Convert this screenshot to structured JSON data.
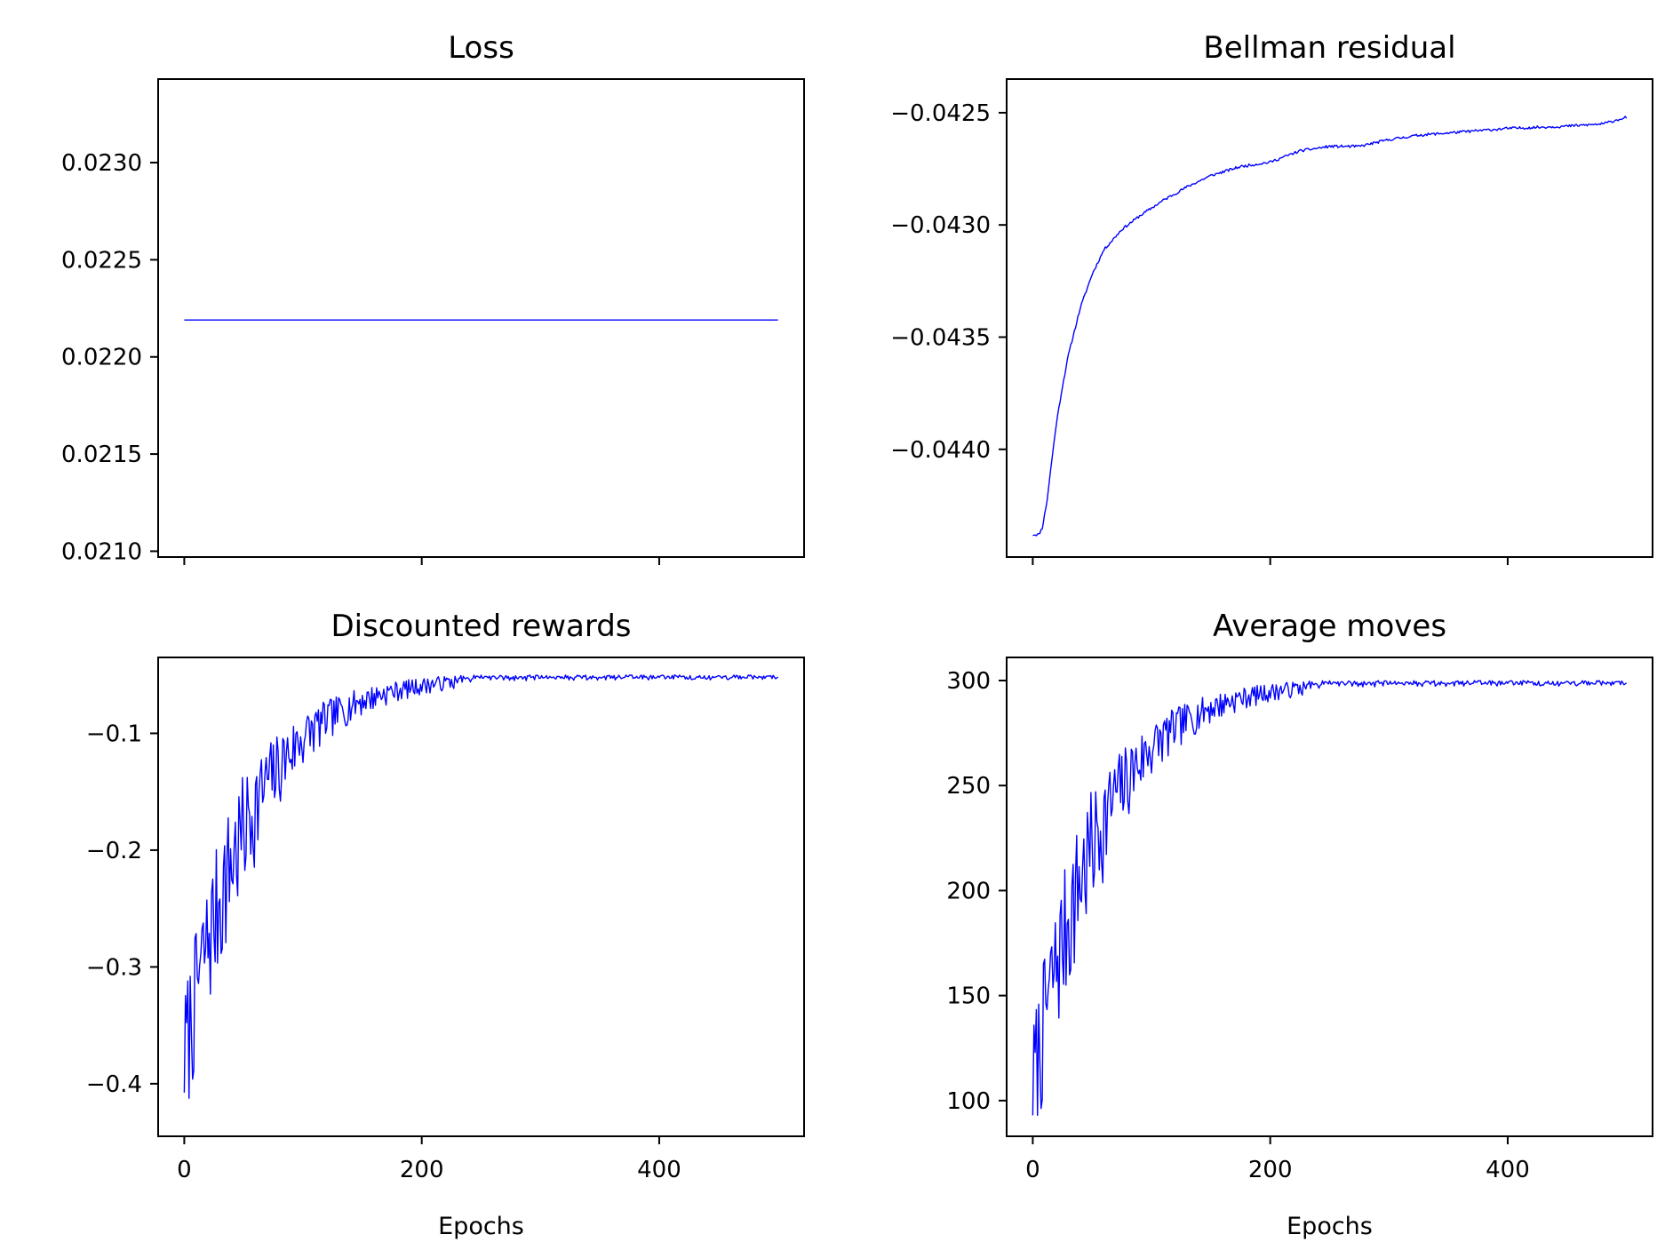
{
  "figure": {
    "background": "#ffffff",
    "line_color": "#0000ff"
  },
  "chart_data": [
    {
      "id": "loss",
      "type": "line",
      "title": "Loss",
      "xlabel": "",
      "ylabel": "",
      "xlim": [
        -22,
        522
      ],
      "ylim": [
        0.02097,
        0.02343
      ],
      "xticks": [
        0,
        200,
        400
      ],
      "xtick_labels": [
        "",
        "",
        ""
      ],
      "yticks": [
        0.021,
        0.0215,
        0.022,
        0.0225,
        0.023
      ],
      "ytick_labels": [
        "0.0210",
        "0.0215",
        "0.0220",
        "0.0225",
        "0.0230"
      ],
      "grid": false,
      "series": [
        {
          "color": "#0000ff",
          "generator": "constant",
          "value": 0.02219,
          "x": [
            0,
            500
          ]
        }
      ]
    },
    {
      "id": "bellman",
      "type": "line",
      "title": "Bellman residual",
      "xlabel": "",
      "ylabel": "",
      "xlim": [
        -22,
        522
      ],
      "ylim": [
        -0.04448,
        -0.04235
      ],
      "xticks": [
        0,
        200,
        400
      ],
      "xtick_labels": [
        "",
        "",
        ""
      ],
      "yticks": [
        -0.044,
        -0.0435,
        -0.043,
        -0.0425
      ],
      "ytick_labels": [
        "−0.0440",
        "−0.0435",
        "−0.0430",
        "−0.0425"
      ],
      "grid": false,
      "series": [
        {
          "color": "#0000ff",
          "generator": "curve",
          "points": [
            [
              0,
              -0.04438
            ],
            [
              5,
              -0.04438
            ],
            [
              8,
              -0.04435
            ],
            [
              12,
              -0.04423
            ],
            [
              16,
              -0.04405
            ],
            [
              20,
              -0.04388
            ],
            [
              25,
              -0.04372
            ],
            [
              30,
              -0.04358
            ],
            [
              40,
              -0.04337
            ],
            [
              50,
              -0.04322
            ],
            [
              60,
              -0.04311
            ],
            [
              75,
              -0.04302
            ],
            [
              90,
              -0.04296
            ],
            [
              110,
              -0.04289
            ],
            [
              130,
              -0.04283
            ],
            [
              150,
              -0.04278
            ],
            [
              175,
              -0.04274
            ],
            [
              200,
              -0.04272
            ],
            [
              225,
              -0.04267
            ],
            [
              250,
              -0.04265
            ],
            [
              275,
              -0.04265
            ],
            [
              300,
              -0.04262
            ],
            [
              325,
              -0.0426
            ],
            [
              350,
              -0.04259
            ],
            [
              375,
              -0.04258
            ],
            [
              400,
              -0.04257
            ],
            [
              450,
              -0.04256
            ],
            [
              480,
              -0.04255
            ],
            [
              500,
              -0.04252
            ]
          ],
          "noise": 6e-06,
          "seed": 11
        }
      ]
    },
    {
      "id": "rewards",
      "type": "line",
      "title": "Discounted rewards",
      "xlabel": "Epochs",
      "ylabel": "",
      "xlim": [
        -22,
        522
      ],
      "ylim": [
        -0.445,
        -0.035
      ],
      "xticks": [
        0,
        200,
        400
      ],
      "xtick_labels": [
        "0",
        "200",
        "400"
      ],
      "yticks": [
        -0.4,
        -0.3,
        -0.2,
        -0.1
      ],
      "ytick_labels": [
        "−0.4",
        "−0.3",
        "−0.2",
        "−0.1"
      ],
      "grid": false,
      "series": [
        {
          "color": "#0000ff",
          "generator": "noisy",
          "x_range": [
            0,
            500
          ],
          "max": -0.05,
          "min": -0.425,
          "start_mean": -0.37,
          "plateau_mean": -0.05,
          "tau": 55,
          "spread_early": 0.06,
          "spread_late": 0.004,
          "seed": 7
        }
      ]
    },
    {
      "id": "moves",
      "type": "line",
      "title": "Average moves",
      "xlabel": "Epochs",
      "ylabel": "",
      "xlim": [
        -22,
        522
      ],
      "ylim": [
        83,
        311
      ],
      "xticks": [
        0,
        200,
        400
      ],
      "xtick_labels": [
        "0",
        "200",
        "400"
      ],
      "yticks": [
        100,
        150,
        200,
        250,
        300
      ],
      "ytick_labels": [
        "100",
        "150",
        "200",
        "250",
        "300"
      ],
      "grid": false,
      "series": [
        {
          "color": "#0000ff",
          "generator": "noisy",
          "x_range": [
            0,
            500
          ],
          "max": 300,
          "min": 93,
          "start_mean": 110,
          "plateau_mean": 300,
          "tau": 55,
          "spread_early": 34,
          "spread_late": 2.5,
          "seed": 7
        }
      ]
    }
  ]
}
